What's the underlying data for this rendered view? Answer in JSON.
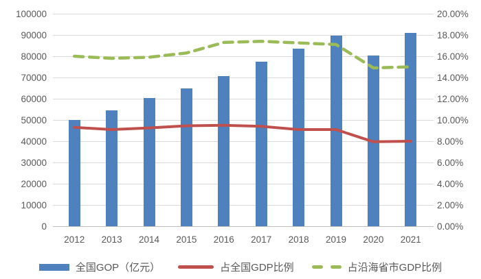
{
  "chart_data": {
    "type": "combo",
    "title": "",
    "categories": [
      "2012",
      "2013",
      "2014",
      "2015",
      "2016",
      "2017",
      "2018",
      "2019",
      "2020",
      "2021"
    ],
    "series": [
      {
        "name": "全国GOP（亿元）",
        "type": "bar",
        "axis": "left",
        "color": "#4E81BD",
        "values": [
          50100,
          54600,
          60200,
          64800,
          70600,
          77400,
          83600,
          89600,
          80400,
          90900
        ]
      },
      {
        "name": "占全国GDP比例",
        "type": "line",
        "dashed": false,
        "axis": "right",
        "color": "#C0504D",
        "values": [
          9.3,
          9.1,
          9.25,
          9.45,
          9.5,
          9.4,
          9.1,
          9.1,
          7.95,
          8.0
        ]
      },
      {
        "name": "占沿海省市GDP比例",
        "type": "line",
        "dashed": true,
        "axis": "right",
        "color": "#9BBB59",
        "values": [
          16.0,
          15.8,
          15.9,
          16.3,
          17.3,
          17.4,
          17.25,
          17.1,
          14.9,
          15.0
        ]
      }
    ],
    "left_axis": {
      "min": 0,
      "max": 100000,
      "step": 10000,
      "tick_labels_top_to_bottom": [
        "100000",
        "90000",
        "80000",
        "70000",
        "60000",
        "50000",
        "40000",
        "30000",
        "20000",
        "10000",
        "0"
      ]
    },
    "right_axis": {
      "min": 0,
      "max": 20,
      "step": 2,
      "unit": "%",
      "tick_labels_top_to_bottom": [
        "20.00%",
        "18.00%",
        "16.00%",
        "14.00%",
        "12.00%",
        "10.00%",
        "8.00%",
        "6.00%",
        "4.00%",
        "2.00%",
        "0.00%"
      ]
    },
    "grid": true,
    "legend_position": "bottom"
  },
  "colors": {
    "gridline": "#D9D9D9",
    "axis_line": "#BFBFBF",
    "tick_text": "#595959",
    "background": "#FFFFFF"
  }
}
